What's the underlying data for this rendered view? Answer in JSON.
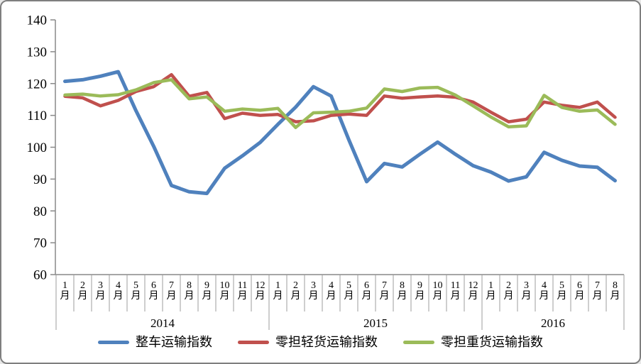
{
  "chart_data": {
    "type": "line",
    "title": "",
    "grid": false,
    "legend_position": "bottom",
    "y_axis": {
      "min": 60,
      "max": 140,
      "step": 10,
      "ticks": [
        140,
        130,
        120,
        110,
        100,
        90,
        80,
        70,
        60
      ]
    },
    "x_axis": {
      "month_suffix": "月",
      "years": [
        {
          "label": "2014",
          "months": 12
        },
        {
          "label": "2015",
          "months": 12
        },
        {
          "label": "2016",
          "months": 8
        }
      ],
      "month_numbers": [
        "1",
        "2",
        "3",
        "4",
        "5",
        "6",
        "7",
        "8",
        "9",
        "10",
        "11",
        "12",
        "1",
        "2",
        "3",
        "4",
        "5",
        "6",
        "7",
        "8",
        "9",
        "10",
        "11",
        "12",
        "1",
        "2",
        "3",
        "4",
        "5",
        "6",
        "7",
        "8"
      ]
    },
    "series": [
      {
        "name": "整车运输指数",
        "color": "#4F81BD",
        "values": [
          120.7,
          121.2,
          122.3,
          123.7,
          111.5,
          100.3,
          88.0,
          86.0,
          85.5,
          93.4,
          97.3,
          101.5,
          107.2,
          112.6,
          119.0,
          116.1,
          102.3,
          89.2,
          94.9,
          93.8,
          97.8,
          101.6,
          97.8,
          94.2,
          92.2,
          89.4,
          90.7,
          98.4,
          95.9,
          94.1,
          93.7,
          89.5
        ]
      },
      {
        "name": "零担轻货运输指数",
        "color": "#C0504D",
        "values": [
          116.0,
          115.5,
          113.0,
          114.7,
          117.5,
          119.0,
          122.8,
          116.0,
          117.2,
          109.0,
          110.7,
          110.0,
          110.3,
          108.0,
          108.3,
          110.0,
          110.4,
          110.0,
          116.1,
          115.4,
          115.8,
          116.1,
          115.7,
          114.2,
          111.0,
          108.0,
          108.8,
          114.2,
          113.2,
          112.5,
          114.2,
          109.4
        ]
      },
      {
        "name": "零担重货运输指数",
        "color": "#9BBB59",
        "values": [
          116.4,
          116.7,
          116.1,
          116.5,
          118.0,
          120.3,
          121.2,
          115.2,
          115.8,
          111.3,
          112.0,
          111.6,
          112.2,
          106.2,
          110.8,
          111.0,
          111.3,
          112.3,
          118.3,
          117.5,
          118.6,
          118.8,
          116.4,
          113.0,
          109.5,
          106.4,
          106.7,
          116.3,
          112.5,
          111.3,
          111.7,
          107.2
        ]
      }
    ],
    "axis_color": "#898989",
    "separator_color": "#9c9c9c"
  }
}
